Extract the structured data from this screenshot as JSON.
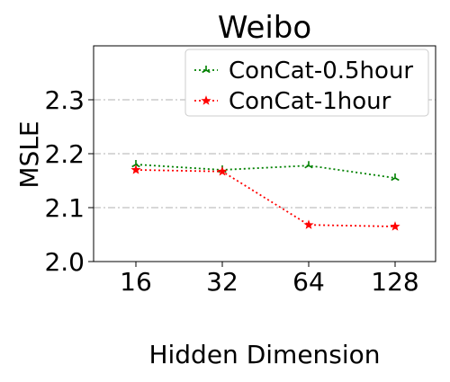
{
  "chart_data": {
    "type": "line",
    "title": "Weibo",
    "xlabel": "Hidden Dimension",
    "ylabel": "MSLE",
    "categories": [
      "16",
      "32",
      "64",
      "128"
    ],
    "ylim": [
      2.0,
      2.4
    ],
    "yticks": [
      "2.0",
      "2.1",
      "2.2",
      "2.3"
    ],
    "grid": "horizontal dash-dot",
    "legend_position": "top-right",
    "series": [
      {
        "name": "ConCat-0.5hour",
        "color": "#008000",
        "marker": "tri-star",
        "values": [
          2.18,
          2.17,
          2.178,
          2.155
        ]
      },
      {
        "name": "ConCat-1hour",
        "color": "#ff0000",
        "marker": "star",
        "values": [
          2.17,
          2.167,
          2.068,
          2.065
        ]
      }
    ]
  }
}
